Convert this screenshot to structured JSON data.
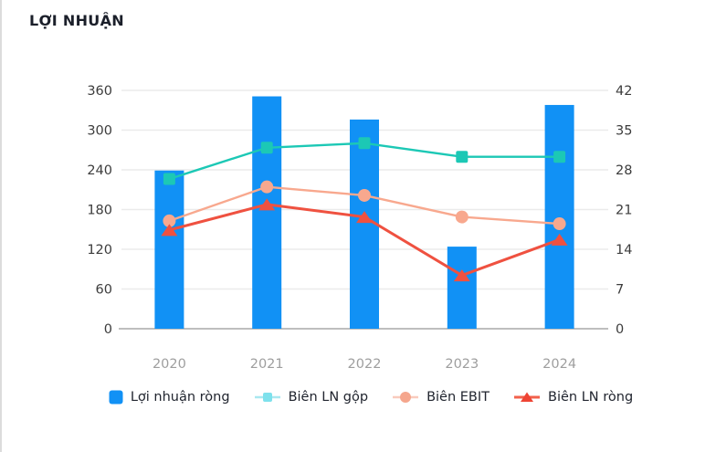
{
  "title": "LỢI NHUẬN",
  "chart_data": {
    "type": "bar",
    "categories": [
      "2020",
      "2021",
      "2022",
      "2023",
      "2024"
    ],
    "series": [
      {
        "name": "Lợi nhuận ròng",
        "type": "bar",
        "axis": "left",
        "color": "#1191f5",
        "values": [
          239,
          351,
          316,
          124,
          338
        ]
      },
      {
        "name": "Biên LN gộp",
        "type": "line",
        "marker": "square",
        "axis": "right",
        "color": "#1cc8b5",
        "values": [
          26.4,
          31.9,
          32.7,
          30.3,
          30.3
        ]
      },
      {
        "name": "Biên EBIT",
        "type": "line",
        "marker": "circle",
        "axis": "right",
        "color": "#f8a88e",
        "values": [
          19,
          25,
          23.5,
          19.7,
          18.5
        ]
      },
      {
        "name": "Biên LN ròng",
        "type": "line",
        "marker": "triangle",
        "axis": "right",
        "color": "#ef5140",
        "values": [
          17.4,
          21.9,
          19.7,
          9.4,
          15.7
        ]
      }
    ],
    "left_axis": {
      "min": 0,
      "max": 360,
      "step": 60,
      "ticks": [
        "360",
        "300",
        "240",
        "180",
        "120",
        "60",
        "0"
      ]
    },
    "right_axis": {
      "min": 0,
      "max": 42,
      "step": 7,
      "ticks": [
        "42",
        "35",
        "28",
        "21",
        "14",
        "7",
        "0"
      ]
    },
    "grid": true,
    "legend_position": "bottom"
  },
  "legend": {
    "items": [
      {
        "marker": "square-fill",
        "fill": "#1191f5"
      },
      {
        "marker": "line-square",
        "line": "#a9e8f0",
        "fill": "#7ee1ec"
      },
      {
        "marker": "line-circle",
        "line": "#f9cbbd",
        "fill": "#f5a68d"
      },
      {
        "marker": "line-triangle",
        "line": "#f2604b",
        "fill": "#ee4434"
      }
    ]
  },
  "colors": {
    "bar_blue": "#1191f5",
    "gross_teal": "#1cc8b5",
    "ebit_salmon": "#f8a88e",
    "net_red": "#ef5140",
    "gridline": "#ebebeb",
    "axis_line": "#a9a9a9",
    "tick_text": "#3c3c3c",
    "year_text": "#9e9e9e",
    "title_text": "#1b1f2a",
    "legend_text": "#21252f"
  }
}
